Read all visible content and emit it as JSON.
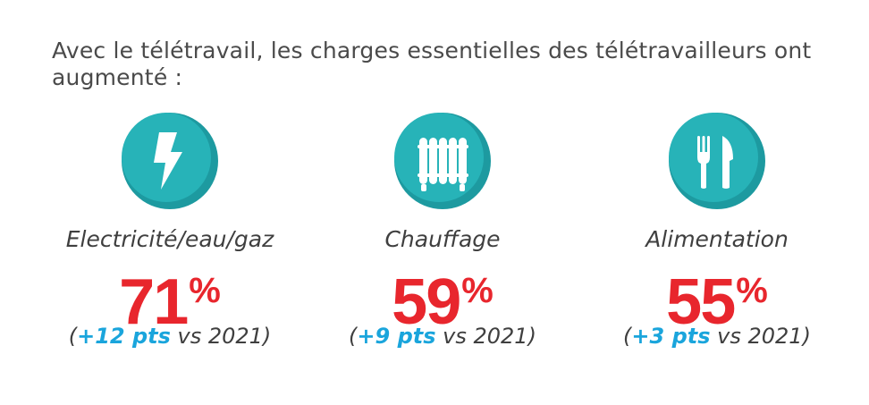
{
  "headline": "Avec le télétravail, les charges essentielles des télétravailleurs ont augmenté :",
  "colors": {
    "accent_red": "#e8262d",
    "accent_blue": "#1aa5dc",
    "teal": "#27b3b8",
    "teal_dark": "#1d9aa0"
  },
  "items": [
    {
      "icon": "lightning-icon",
      "label": "Electricité/eau/gaz",
      "value": "71",
      "unit": "%",
      "open": "(",
      "pts": "+12 pts",
      "rest": " vs 2021)"
    },
    {
      "icon": "radiator-icon",
      "label": "Chauffage",
      "value": "59",
      "unit": "%",
      "open": "(",
      "pts": "+9 pts",
      "rest": " vs 2021)"
    },
    {
      "icon": "fork-knife-icon",
      "label": "Alimentation",
      "value": "55",
      "unit": "%",
      "open": "(",
      "pts": "+3 pts",
      "rest": " vs 2021)"
    }
  ]
}
